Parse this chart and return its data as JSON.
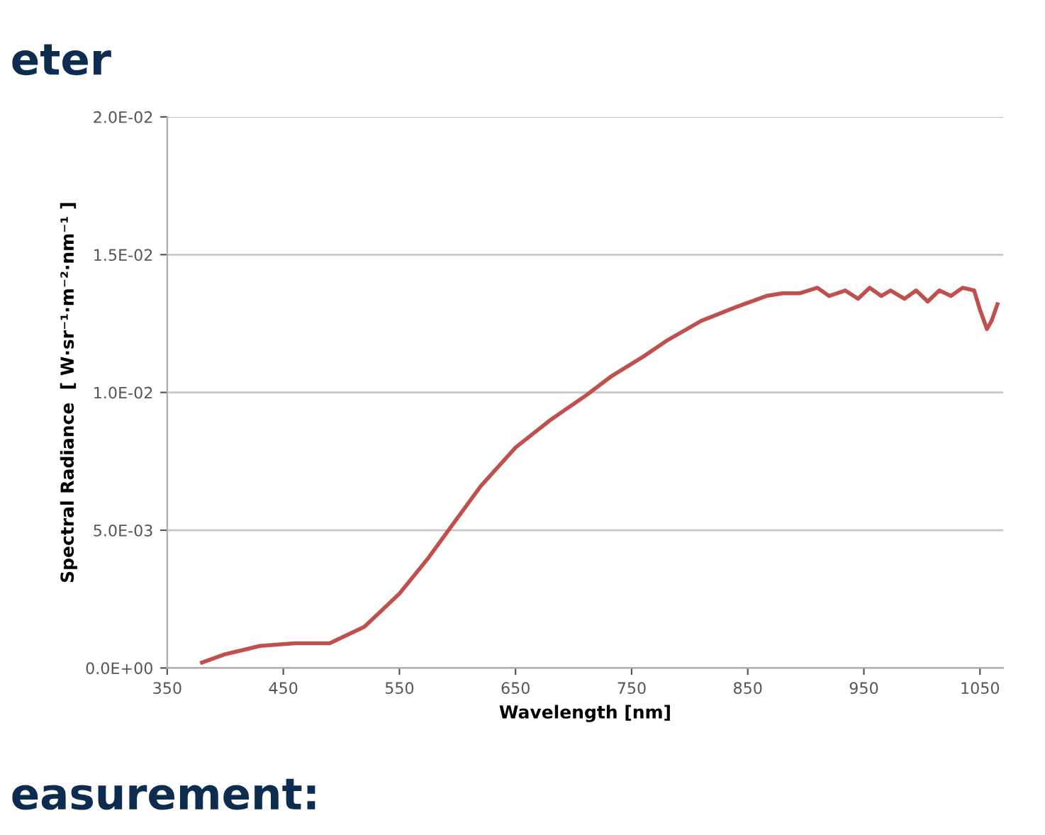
{
  "chart_data": {
    "type": "line",
    "xlabel": "Wavelength [nm]",
    "ylabel": "Spectral Radiance  [ W·sr⁻¹·m⁻²·nm⁻¹ ]",
    "annotations": [
      "eter",
      "easurement:"
    ],
    "x": [
      380,
      400,
      430,
      460,
      490,
      520,
      550,
      575,
      594,
      620,
      650,
      680,
      711,
      733,
      760,
      781,
      810,
      840,
      866,
      880,
      895,
      910,
      920,
      934,
      945,
      955,
      965,
      973,
      985,
      995,
      1005,
      1015,
      1025,
      1035,
      1045,
      1050,
      1056,
      1060,
      1065
    ],
    "series": [
      {
        "color": "#c0504d",
        "values": [
          0.0002,
          0.0005,
          0.0008,
          0.0009,
          0.0009,
          0.0015,
          0.0027,
          0.004,
          0.0051,
          0.0066,
          0.008,
          0.009,
          0.0099,
          0.0106,
          0.0113,
          0.0119,
          0.0126,
          0.0131,
          0.0135,
          0.0136,
          0.0136,
          0.0138,
          0.0135,
          0.0137,
          0.0134,
          0.0138,
          0.0135,
          0.0137,
          0.0134,
          0.0137,
          0.0133,
          0.0137,
          0.0135,
          0.0138,
          0.0137,
          0.013,
          0.0123,
          0.0126,
          0.0132
        ]
      }
    ],
    "xlim": [
      350,
      1070
    ],
    "xticks": [
      350,
      450,
      550,
      650,
      750,
      850,
      950,
      1050
    ],
    "ylim": [
      0,
      0.02
    ],
    "yticks": [
      {
        "value": 0,
        "label": "0.0E+00"
      },
      {
        "value": 0.005,
        "label": "5.0E-03"
      },
      {
        "value": 0.01,
        "label": "1.0E-02"
      },
      {
        "value": 0.015,
        "label": "1.5E-02"
      },
      {
        "value": 0.02,
        "label": "2.0E-02"
      }
    ],
    "grid": "y",
    "marker": "none",
    "line_style": "solid"
  }
}
